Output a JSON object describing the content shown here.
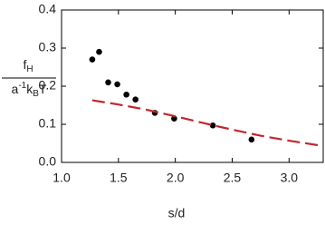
{
  "chart_data": {
    "type": "scatter",
    "xlabel": "s/d",
    "ylabel": {
      "numerator": {
        "base": "f",
        "sub": "H"
      },
      "denominator": [
        {
          "base": "a",
          "sup": "-1"
        },
        {
          "base": "k",
          "sub": "B"
        },
        {
          "base": "T"
        }
      ]
    },
    "xlim": [
      1.0,
      3.3
    ],
    "ylim": [
      0.0,
      0.4
    ],
    "xticks": [
      {
        "value": 1.0,
        "label": "1.0"
      },
      {
        "value": 1.5,
        "label": "1.5"
      },
      {
        "value": 2.0,
        "label": "2.0"
      },
      {
        "value": 2.5,
        "label": "2.5"
      },
      {
        "value": 3.0,
        "label": "3.0"
      }
    ],
    "yticks": [
      {
        "value": 0.0,
        "label": "0.0"
      },
      {
        "value": 0.1,
        "label": "0.1"
      },
      {
        "value": 0.2,
        "label": "0.2"
      },
      {
        "value": 0.3,
        "label": "0.3"
      },
      {
        "value": 0.4,
        "label": "0.4"
      }
    ],
    "series": [
      {
        "kind": "points",
        "color": "#000000",
        "x": [
          1.27,
          1.33,
          1.41,
          1.49,
          1.57,
          1.65,
          1.82,
          1.99,
          2.33,
          2.67
        ],
        "values": [
          0.27,
          0.29,
          0.21,
          0.205,
          0.178,
          0.165,
          0.13,
          0.115,
          0.097,
          0.06
        ]
      },
      {
        "kind": "dashed-line",
        "color": "#c0272d",
        "x": [
          1.27,
          1.5,
          1.75,
          2.0,
          2.25,
          2.5,
          2.75,
          3.0,
          3.3
        ],
        "values": [
          0.163,
          0.152,
          0.138,
          0.121,
          0.103,
          0.086,
          0.07,
          0.057,
          0.043
        ]
      }
    ]
  }
}
